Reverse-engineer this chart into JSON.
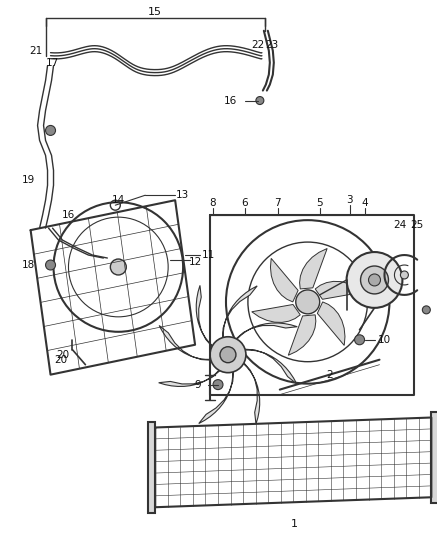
{
  "bg_color": "#ffffff",
  "line_color": "#333333",
  "label_color": "#111111",
  "label_fontsize": 7.0,
  "fig_width": 4.38,
  "fig_height": 5.33,
  "dpi": 100
}
